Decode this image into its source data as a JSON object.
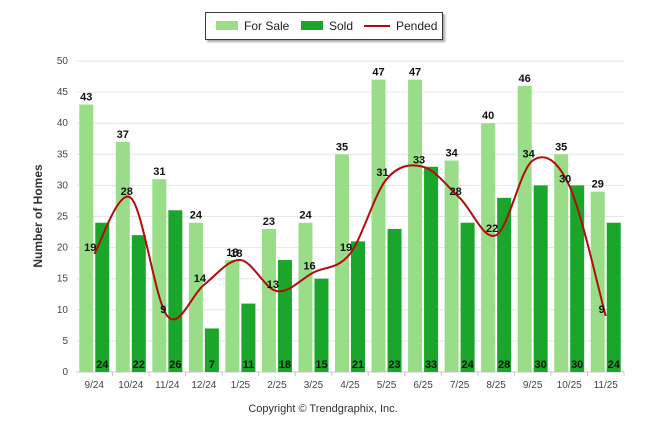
{
  "chart_data": {
    "type": "bar",
    "categories": [
      "9/24",
      "10/24",
      "11/24",
      "12/24",
      "1/25",
      "2/25",
      "3/25",
      "4/25",
      "5/25",
      "6/25",
      "7/25",
      "8/25",
      "9/25",
      "10/25",
      "11/25"
    ],
    "series": [
      {
        "name": "For Sale",
        "type": "bar",
        "values": [
          43,
          37,
          31,
          24,
          18,
          23,
          24,
          35,
          47,
          47,
          34,
          40,
          46,
          35,
          29
        ]
      },
      {
        "name": "Sold",
        "type": "bar",
        "values": [
          24,
          22,
          26,
          7,
          11,
          18,
          15,
          21,
          23,
          33,
          24,
          28,
          30,
          30,
          24
        ]
      },
      {
        "name": "Pended",
        "type": "line",
        "values": [
          19,
          28,
          9,
          14,
          18,
          13,
          16,
          19,
          31,
          33,
          28,
          22,
          34,
          30,
          9
        ]
      }
    ],
    "ylabel": "Number of Homes",
    "xlabel": "",
    "ylim": [
      0,
      50
    ],
    "yticks": [
      0,
      5,
      10,
      15,
      20,
      25,
      30,
      35,
      40,
      45,
      50
    ],
    "grid": true,
    "legend_position": "top-center"
  },
  "colors": {
    "for_sale": "#99dd88",
    "sold": "#1aa62a",
    "pended": "#b30c0c",
    "grid": "#e6e6e6"
  },
  "footer": {
    "copyright": "Copyright © Trendgraphix, Inc."
  }
}
